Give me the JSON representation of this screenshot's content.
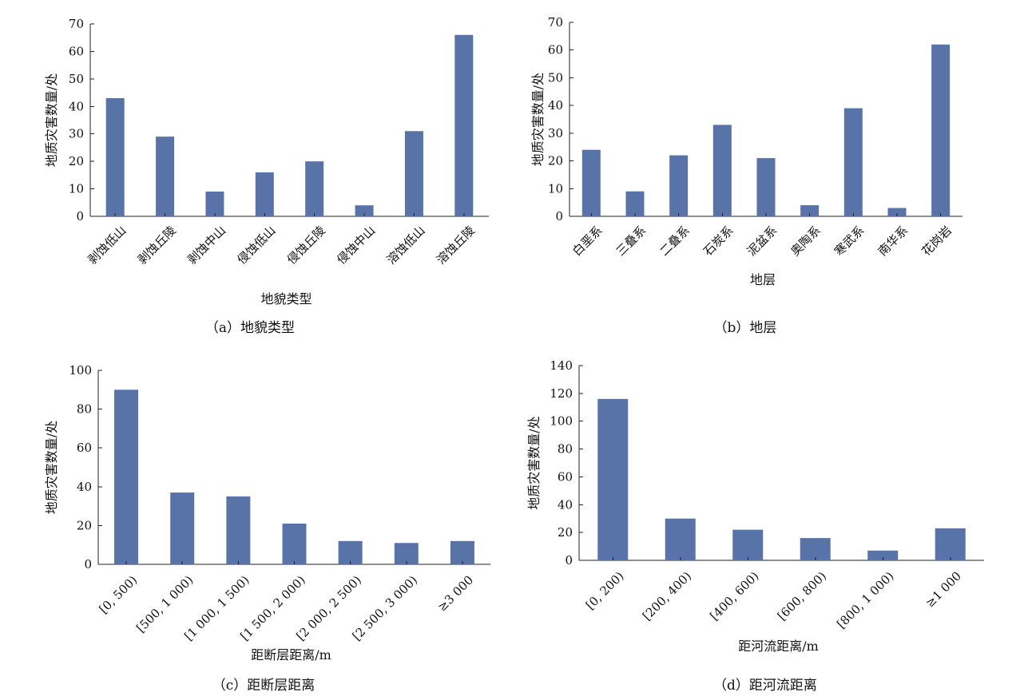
{
  "chart_data": [
    {
      "id": "a",
      "type": "bar",
      "caption": "（a）地貌类型",
      "xlabel": "地貌类型",
      "ylabel": "地质灾害数量/处",
      "ylim": [
        0,
        70
      ],
      "yticks": [
        0,
        10,
        20,
        30,
        40,
        50,
        60,
        70
      ],
      "categories": [
        "剥蚀低山",
        "剥蚀丘陵",
        "剥蚀中山",
        "侵蚀低山",
        "侵蚀丘陵",
        "侵蚀中山",
        "溶蚀低山",
        "溶蚀丘陵"
      ],
      "values": [
        43,
        29,
        9,
        16,
        20,
        4,
        31,
        66
      ],
      "bar_color": "#5873a8"
    },
    {
      "id": "b",
      "type": "bar",
      "caption": "（b）地层",
      "xlabel": "地层",
      "ylabel": "地质灾害数量/处",
      "ylim": [
        0,
        70
      ],
      "yticks": [
        0,
        10,
        20,
        30,
        40,
        50,
        60,
        70
      ],
      "categories": [
        "白垩系",
        "三叠系",
        "二叠系",
        "石炭系",
        "泥盆系",
        "奥陶系",
        "寒武系",
        "南华系",
        "花岗岩"
      ],
      "values": [
        24,
        9,
        22,
        33,
        21,
        4,
        39,
        3,
        62
      ],
      "bar_color": "#5873a8"
    },
    {
      "id": "c",
      "type": "bar",
      "caption": "（c）距断层距离",
      "xlabel": "距断层距离/m",
      "ylabel": "地质灾害数量/处",
      "ylim": [
        0,
        100
      ],
      "yticks": [
        0,
        20,
        40,
        60,
        80,
        100
      ],
      "categories": [
        "[0, 500)",
        "[500, 1 000)",
        "[1 000, 1 500)",
        "[1 500, 2 000)",
        "[2 000, 2 500)",
        "[2 500, 3 000)",
        "≥3 000"
      ],
      "values": [
        90,
        37,
        35,
        21,
        12,
        11,
        12
      ],
      "bar_color": "#5873a8"
    },
    {
      "id": "d",
      "type": "bar",
      "caption": "（d）距河流距离",
      "xlabel": "距河流距离/m",
      "ylabel": "地质灾害数量/处",
      "ylim": [
        0,
        140
      ],
      "yticks": [
        0,
        20,
        40,
        60,
        80,
        100,
        120,
        140
      ],
      "categories": [
        "[0, 200)",
        "[200, 400)",
        "[400, 600)",
        "[600, 800)",
        "[800, 1 000)",
        "≥1 000"
      ],
      "values": [
        116,
        30,
        22,
        16,
        7,
        23
      ],
      "bar_color": "#5873a8"
    }
  ]
}
